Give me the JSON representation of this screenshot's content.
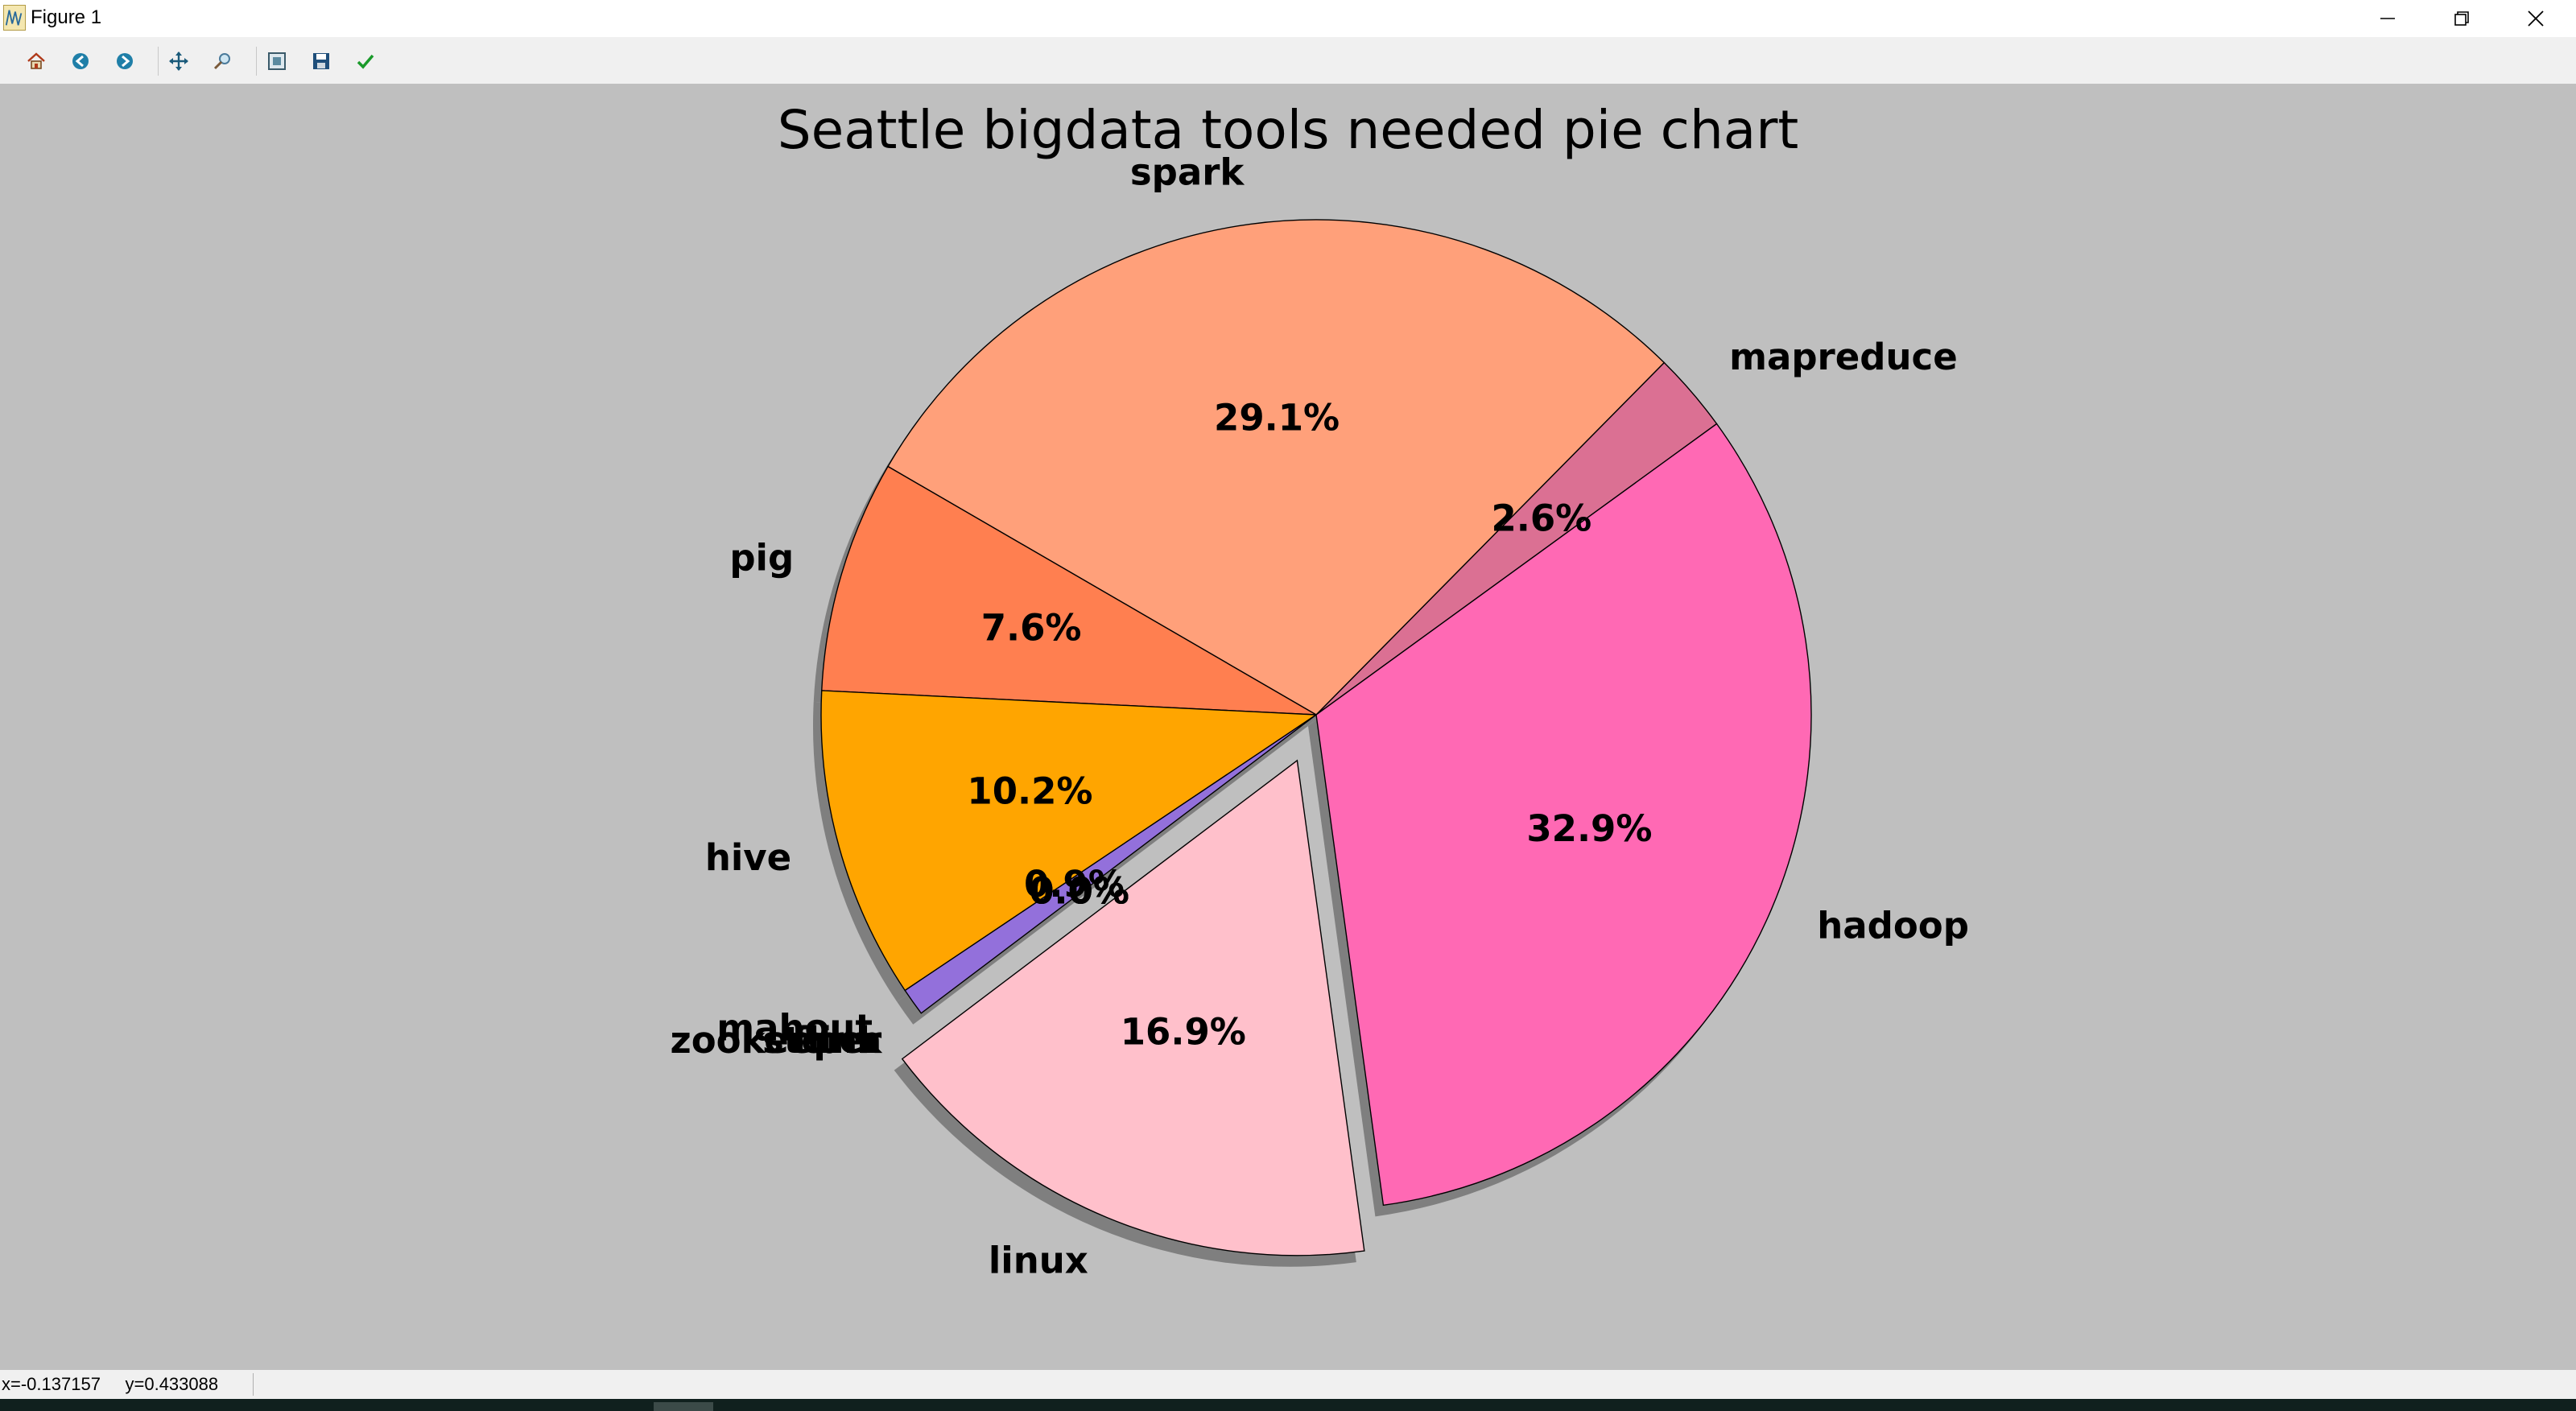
{
  "window": {
    "title": "Figure 1",
    "controls": [
      "minimize-icon",
      "restore-icon",
      "close-icon"
    ]
  },
  "toolbar": {
    "buttons": [
      {
        "name": "home-button",
        "icon": "home-icon"
      },
      {
        "name": "back-button",
        "icon": "back-arrow-icon"
      },
      {
        "name": "forward-button",
        "icon": "forward-arrow-icon"
      },
      {
        "name": "pan-button",
        "icon": "pan-move-icon"
      },
      {
        "name": "zoom-button",
        "icon": "zoom-icon"
      },
      {
        "name": "configure-subplots-button",
        "icon": "subplots-icon"
      },
      {
        "name": "save-button",
        "icon": "save-disk-icon"
      },
      {
        "name": "edit-parameters-button",
        "icon": "checkmark-icon"
      }
    ]
  },
  "status": {
    "coords": "x=-0.137157     y=0.433088"
  },
  "colors": {
    "background": "#bfbfbf",
    "edge": "#000000",
    "shadow": "#7f7f7f"
  },
  "chart_data": {
    "type": "pie",
    "title": "Seattle bigdata tools needed pie chart",
    "start_angle_deg": 36,
    "direction": "counterclockwise",
    "shadow": true,
    "legend": false,
    "slices": [
      {
        "label": "mapreduce",
        "value": 2.6,
        "pct_label": "2.6%",
        "color": "#db7093",
        "explode": 0
      },
      {
        "label": "spark",
        "value": 29.1,
        "pct_label": "29.1%",
        "color": "#ffa07a",
        "explode": 0
      },
      {
        "label": "pig",
        "value": 7.6,
        "pct_label": "7.6%",
        "color": "#ff7f50",
        "explode": 0
      },
      {
        "label": "hive",
        "value": 10.2,
        "pct_label": "10.2%",
        "color": "#ffa500",
        "explode": 0
      },
      {
        "label": "mahout",
        "value": 0.9,
        "pct_label": "0.9%",
        "color": "#9370db",
        "explode": 0
      },
      {
        "label": "flink",
        "value": 0.0,
        "pct_label": "0.0%",
        "color": "#8a2be2",
        "explode": 0
      },
      {
        "label": "storm",
        "value": 0.0,
        "pct_label": "0.0%",
        "color": "#4b0082",
        "explode": 0
      },
      {
        "label": "zookeeper",
        "value": 0.0,
        "pct_label": "0.0%",
        "color": "#6a5acd",
        "explode": 0
      },
      {
        "label": "linux",
        "value": 16.9,
        "pct_label": "16.9%",
        "color": "#ffc0cb",
        "explode": 0.1
      },
      {
        "label": "hadoop",
        "value": 32.9,
        "pct_label": "32.9%",
        "color": "#ff69b4",
        "explode": 0
      }
    ]
  }
}
